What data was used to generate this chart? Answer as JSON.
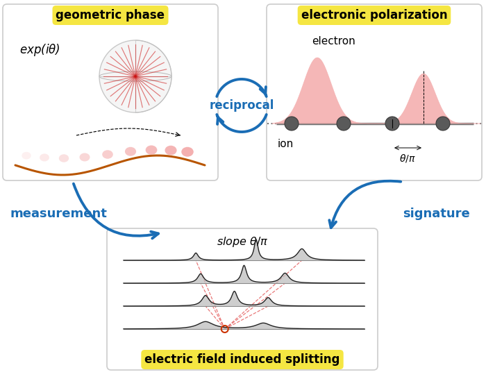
{
  "bg_color": "#ffffff",
  "panel_border_color": "#cccccc",
  "yellow_label_bg": "#f5e642",
  "blue_color": "#1a6db5",
  "salmon_fill": "#f4b0b0",
  "orange_circle_color": "#cc3300",
  "red_dashed_color": "#e04040",
  "spectrum_line_color": "#222222",
  "panel_geom_title": "geometric phase",
  "panel_elec_title": "electronic polarization",
  "panel_split_title": "electric field induced splitting",
  "middle_label": "reciprocal",
  "left_label": "measurement",
  "right_label": "signature",
  "ion_label": "ion",
  "electron_label": "electron"
}
